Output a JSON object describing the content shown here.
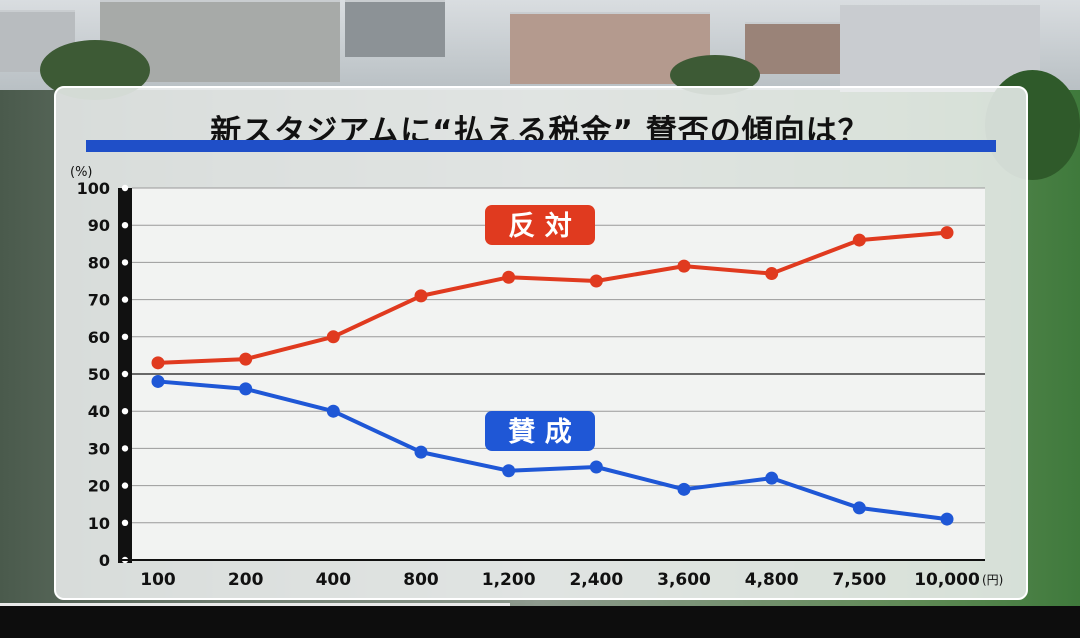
{
  "title": "新スタジアムに“払える税金” 賛否の傾向は？",
  "colors": {
    "opposed": "#e03a1f",
    "favor": "#1f57d6",
    "title_rule": "#1f4fc8"
  },
  "chart_data": {
    "type": "line",
    "title": "新スタジアムに“払える税金” 賛否の傾向は？",
    "ylabel": "(%)",
    "xlabel": "(円)",
    "categories": [
      "100",
      "200",
      "400",
      "800",
      "1,200",
      "2,400",
      "3,600",
      "4,800",
      "7,500",
      "10,000"
    ],
    "yticks": [
      "0",
      "10",
      "20",
      "30",
      "40",
      "50",
      "60",
      "70",
      "80",
      "90",
      "100"
    ],
    "ylim": [
      0,
      100
    ],
    "grid": true,
    "series": [
      {
        "name": "反 対",
        "color": "#e03a1f",
        "values": [
          53,
          54,
          60,
          71,
          76,
          75,
          79,
          77,
          86,
          88
        ]
      },
      {
        "name": "賛 成",
        "color": "#1f57d6",
        "values": [
          48,
          46,
          40,
          29,
          24,
          25,
          19,
          22,
          14,
          11
        ]
      }
    ]
  }
}
